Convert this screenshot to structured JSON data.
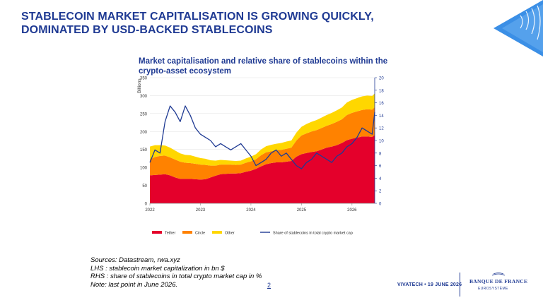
{
  "header": {
    "title_line1": "STABLECOIN MARKET CAPITALISATION IS GROWING QUICKLY,",
    "title_line2": "DOMINATED BY USD-BACKED STABLECOINS"
  },
  "chart_data": {
    "type": "area",
    "title_line1": "Market capitalisation and relative share of stablecoins within the",
    "title_line2": "crypto-asset ecosystem",
    "y_left_unit": "Billions",
    "ylim_left": [
      0,
      350
    ],
    "ylim_right": [
      0,
      20
    ],
    "yticks_left": [
      "0",
      "50",
      "100",
      "150",
      "200",
      "250",
      "300",
      "350"
    ],
    "yticks_right": [
      "0",
      "2",
      "4",
      "6",
      "8",
      "10",
      "12",
      "14",
      "16",
      "18",
      "20"
    ],
    "x_ticks": [
      "2022",
      "2023",
      "2024",
      "2025",
      "2026"
    ],
    "x_tick_values": [
      2022,
      2023,
      2024,
      2025,
      2026
    ],
    "xlim": [
      2022.0,
      2026.45
    ],
    "x": [
      2022.0,
      2022.1,
      2022.2,
      2022.3,
      2022.4,
      2022.5,
      2022.6,
      2022.7,
      2022.8,
      2022.9,
      2023.0,
      2023.1,
      2023.2,
      2023.3,
      2023.4,
      2023.5,
      2023.6,
      2023.7,
      2023.8,
      2023.9,
      2024.0,
      2024.1,
      2024.2,
      2024.3,
      2024.4,
      2024.5,
      2024.6,
      2024.7,
      2024.8,
      2024.9,
      2025.0,
      2025.1,
      2025.2,
      2025.3,
      2025.4,
      2025.5,
      2025.6,
      2025.7,
      2025.8,
      2025.9,
      2026.0,
      2026.1,
      2026.2,
      2026.3,
      2026.4,
      2026.45
    ],
    "series": [
      {
        "name": "Tether",
        "axis": "left",
        "stacked": true,
        "color": "#e4002b",
        "values": [
          78,
          79,
          80,
          81,
          78,
          72,
          68,
          68,
          68,
          67,
          66,
          67,
          72,
          77,
          81,
          82,
          83,
          83,
          84,
          88,
          91,
          96,
          103,
          109,
          112,
          114,
          114,
          116,
          118,
          130,
          137,
          140,
          143,
          145,
          150,
          155,
          158,
          162,
          168,
          176,
          180,
          183,
          186,
          186,
          185,
          190
        ]
      },
      {
        "name": "Circle",
        "axis": "left",
        "stacked": true,
        "color": "#ff8200",
        "values": [
          45,
          50,
          52,
          52,
          50,
          50,
          48,
          45,
          44,
          43,
          42,
          40,
          33,
          28,
          27,
          26,
          25,
          24,
          24,
          25,
          26,
          27,
          31,
          33,
          33,
          34,
          35,
          36,
          37,
          45,
          52,
          55,
          57,
          59,
          60,
          61,
          63,
          65,
          66,
          70,
          72,
          73,
          74,
          76,
          76,
          78
        ]
      },
      {
        "name": "Other",
        "axis": "left",
        "stacked": true,
        "color": "#ffd700",
        "values": [
          35,
          33,
          30,
          28,
          27,
          25,
          23,
          22,
          22,
          20,
          18,
          17,
          15,
          14,
          13,
          12,
          11,
          11,
          11,
          12,
          13,
          14,
          16,
          17,
          18,
          18,
          19,
          20,
          20,
          22,
          24,
          26,
          27,
          28,
          29,
          30,
          31,
          32,
          33,
          35,
          36,
          37,
          38,
          38,
          38,
          38
        ]
      },
      {
        "name": "Share of stablecoins in total crypto market cap",
        "axis": "right",
        "type": "line",
        "color": "#1f3a93",
        "values": [
          6.5,
          8.5,
          8.0,
          13.0,
          15.5,
          14.5,
          13.0,
          15.5,
          14.0,
          12.0,
          11.0,
          10.5,
          10.0,
          9.0,
          9.5,
          9.0,
          8.5,
          9.0,
          9.5,
          8.5,
          7.5,
          6.0,
          6.5,
          7.0,
          8.0,
          8.5,
          7.5,
          8.0,
          7.0,
          6.0,
          5.5,
          6.5,
          7.0,
          8.0,
          7.5,
          7.0,
          6.5,
          7.5,
          8.0,
          9.0,
          9.5,
          10.5,
          12.0,
          11.5,
          11.0,
          14.5
        ]
      }
    ],
    "legend_position": "bottom",
    "grid": true
  },
  "footer": {
    "source_line1": "Sources: Datastream, rwa.xyz",
    "source_line2": "LHS : stablecoin market capitalization in bn $",
    "source_line3": "RHS : share of stablecoins in total crypto market cap in %",
    "source_line4": "Note: last point in June 2026.",
    "page_number": "2",
    "event": "VIVATECH • 19 JUNE 2026",
    "org_name": "BANQUE DE FRANCE",
    "org_sub": "EUROSYSTÈME"
  },
  "colors": {
    "brand_blue": "#1f3a93",
    "tether": "#e4002b",
    "circle": "#ff8200",
    "other": "#ffd700"
  }
}
